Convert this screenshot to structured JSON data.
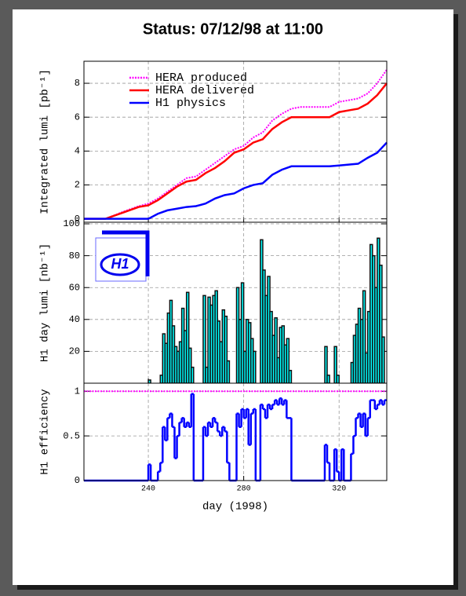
{
  "header": {
    "title": "Status: 07/12/98 at 11:00"
  },
  "chart_data": [
    {
      "type": "line",
      "ylabel": "Integrated lumi [pb⁻¹]",
      "x": [
        213,
        222,
        230,
        236,
        240,
        244,
        248,
        252,
        256,
        260,
        264,
        268,
        272,
        276,
        280,
        284,
        288,
        292,
        296,
        300,
        304,
        308,
        312,
        316,
        320,
        324,
        328,
        332,
        336,
        340
      ],
      "series": [
        {
          "name": "HERA produced",
          "color": "#ff00ff",
          "style": "dotted",
          "values": [
            0,
            0,
            0.45,
            0.75,
            0.9,
            1.2,
            1.6,
            2.0,
            2.4,
            2.5,
            2.9,
            3.3,
            3.7,
            4.1,
            4.3,
            4.8,
            5.1,
            5.8,
            6.2,
            6.5,
            6.6,
            6.6,
            6.6,
            6.6,
            6.9,
            7.0,
            7.1,
            7.4,
            8.0,
            8.8
          ]
        },
        {
          "name": "HERA delivered",
          "color": "#ff0000",
          "style": "solid",
          "values": [
            0,
            0,
            0.4,
            0.7,
            0.8,
            1.1,
            1.5,
            1.9,
            2.2,
            2.3,
            2.7,
            3.0,
            3.4,
            3.9,
            4.1,
            4.5,
            4.7,
            5.3,
            5.7,
            6.0,
            6.0,
            6.0,
            6.0,
            6.0,
            6.3,
            6.4,
            6.5,
            6.8,
            7.3,
            8.0
          ]
        },
        {
          "name": "H1 physics",
          "color": "#0000ff",
          "style": "solid",
          "values": [
            0,
            0,
            0,
            0,
            0,
            0.3,
            0.5,
            0.6,
            0.7,
            0.75,
            0.9,
            1.2,
            1.4,
            1.5,
            1.8,
            2.0,
            2.1,
            2.6,
            2.9,
            3.1,
            3.1,
            3.1,
            3.1,
            3.1,
            3.15,
            3.2,
            3.25,
            3.6,
            3.9,
            4.5
          ]
        }
      ],
      "xlim": [
        213,
        340
      ],
      "xticks": [
        240,
        280,
        320
      ],
      "ylim": [
        -0.2,
        9.3
      ],
      "yticks": [
        0,
        2,
        4,
        6,
        8
      ],
      "grid": true,
      "legend": "top-left"
    },
    {
      "type": "bar",
      "ylabel": "H1 day lumi [nb⁻¹]",
      "logo": "H1",
      "color": "#00ffff",
      "x": [
        240,
        245,
        246,
        247,
        248,
        249,
        250,
        251,
        252,
        253,
        254,
        255,
        256,
        257,
        258,
        263,
        264,
        265,
        266,
        267,
        268,
        269,
        270,
        271,
        272,
        273,
        277,
        278,
        279,
        280,
        281,
        282,
        283,
        284,
        287,
        288,
        289,
        290,
        291,
        292,
        293,
        294,
        295,
        296,
        297,
        298,
        299,
        314,
        315,
        318,
        319,
        325,
        326,
        327,
        328,
        329,
        330,
        331,
        332,
        333,
        334,
        335,
        336,
        337,
        338
      ],
      "values": [
        2,
        5,
        31,
        25,
        44,
        52,
        36,
        23,
        20,
        26,
        47,
        33,
        57,
        22,
        10,
        55,
        10,
        54,
        49,
        55,
        58,
        39,
        26,
        46,
        42,
        14,
        60,
        40,
        63,
        20,
        40,
        38,
        28,
        20,
        90,
        71,
        55,
        67,
        45,
        30,
        41,
        16,
        35,
        36,
        24,
        28,
        8,
        23,
        5,
        23,
        5,
        13,
        30,
        37,
        47,
        40,
        58,
        19,
        45,
        87,
        80,
        60,
        91,
        74,
        29
      ],
      "xlim": [
        213,
        340
      ],
      "xticks": [
        240,
        280,
        320
      ],
      "ylim": [
        0,
        101
      ],
      "yticks": [
        20,
        40,
        60,
        80,
        100
      ],
      "grid": true
    },
    {
      "type": "step",
      "ylabel": "H1 efficiency",
      "xlabel": "day (1998)",
      "color": "#0000ff",
      "reference_line": 1,
      "reference_color": "#ff00ff",
      "x": [
        213,
        240,
        241,
        244,
        245,
        246,
        247,
        248,
        249,
        250,
        251,
        252,
        253,
        254,
        255,
        256,
        257,
        258,
        259,
        263,
        264,
        265,
        266,
        267,
        268,
        269,
        270,
        271,
        272,
        273,
        274,
        277,
        278,
        279,
        280,
        281,
        282,
        283,
        284,
        285,
        287,
        288,
        289,
        290,
        291,
        292,
        293,
        294,
        295,
        296,
        297,
        298,
        300,
        314,
        315,
        316,
        318,
        319,
        320,
        321,
        322,
        325,
        326,
        327,
        328,
        329,
        330,
        331,
        332,
        333,
        334,
        335,
        336,
        337,
        338,
        339
      ],
      "values": [
        0,
        0.18,
        0,
        0.1,
        0.2,
        0.6,
        0.45,
        0.7,
        0.75,
        0.6,
        0.25,
        0.5,
        0.65,
        0.7,
        0.6,
        0.65,
        0.6,
        0.97,
        0,
        0.6,
        0.5,
        0.65,
        0.6,
        0.7,
        0.65,
        0.55,
        0.5,
        0.6,
        0.55,
        0.2,
        0,
        0.75,
        0.6,
        0.8,
        0.7,
        0.8,
        0.4,
        0.75,
        0.8,
        0,
        0.85,
        0.8,
        0.7,
        0.85,
        0.8,
        0.85,
        0.9,
        0.85,
        0.92,
        0.85,
        0.9,
        0.7,
        0,
        0.4,
        0.2,
        0,
        0.35,
        0.1,
        0,
        0.35,
        0,
        0.3,
        0.5,
        0.7,
        0.75,
        0.6,
        0.75,
        0.5,
        0.7,
        0.9,
        0.9,
        0.8,
        0.85,
        0.9,
        0.85,
        0.9
      ],
      "xlim": [
        213,
        340
      ],
      "xticks": [
        240,
        280,
        320
      ],
      "show_xtick_labels": true,
      "ylim": [
        0,
        1.09
      ],
      "yticks": [
        0,
        0.5,
        1
      ],
      "grid": true
    }
  ]
}
